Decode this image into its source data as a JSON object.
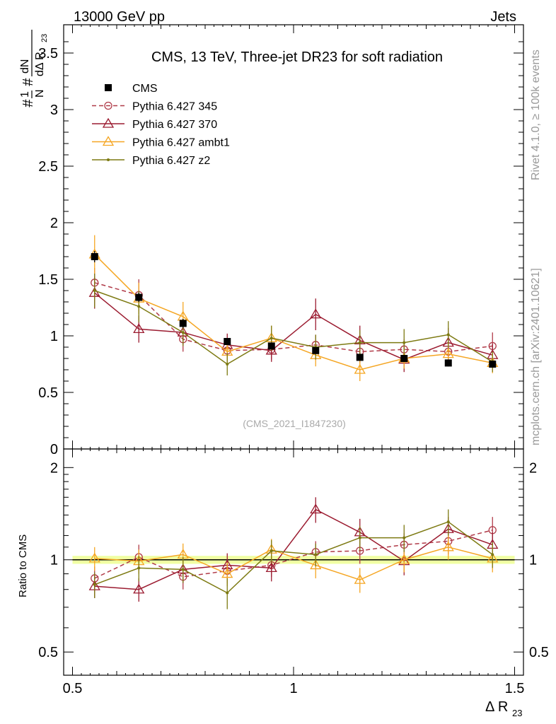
{
  "header": {
    "left": "13000 GeV pp",
    "right": "Jets"
  },
  "side": {
    "rivet": "Rivet 4.1.0, ≥ 100k events",
    "mcplots": "mcplots.cern.ch [arXiv:2401.10621]"
  },
  "chart_data": [
    {
      "type": "line",
      "panel": "main",
      "title": "CMS, 13 TeV, Three-jet DR23 for soft radiation",
      "watermark": "(CMS_2021_I1847230)",
      "ylabel": "#1/N #dN/dΔ R23",
      "ylim": [
        0,
        3.75
      ],
      "yticks": [
        "0",
        "0.5",
        "1",
        "1.5",
        "2",
        "2.5",
        "3",
        "3.5"
      ],
      "x": [
        0.55,
        0.65,
        0.75,
        0.85,
        0.95,
        1.05,
        1.15,
        1.25,
        1.35,
        1.45
      ],
      "series": [
        {
          "name": "CMS",
          "color": "#000000",
          "marker": "square",
          "values": [
            1.7,
            1.34,
            1.11,
            0.95,
            0.91,
            0.87,
            0.81,
            0.8,
            0.76,
            0.75
          ],
          "errors": [
            0.05,
            0.04,
            0.04,
            0.03,
            0.03,
            0.03,
            0.03,
            0.03,
            0.03,
            0.03
          ]
        },
        {
          "name": "Pythia 6.427 345",
          "color": "#b03a48",
          "marker": "circle",
          "dashed": true,
          "values": [
            1.47,
            1.36,
            0.97,
            0.87,
            0.88,
            0.92,
            0.86,
            0.88,
            0.86,
            0.91
          ],
          "errors": [
            0.13,
            0.14,
            0.11,
            0.09,
            0.09,
            0.09,
            0.1,
            0.09,
            0.1,
            0.12
          ]
        },
        {
          "name": "Pythia 6.427 370",
          "color": "#9b1b30",
          "marker": "triangle",
          "values": [
            1.38,
            1.06,
            1.03,
            0.92,
            0.87,
            1.19,
            0.96,
            0.79,
            0.94,
            0.83
          ],
          "errors": [
            0.14,
            0.12,
            0.11,
            0.1,
            0.1,
            0.14,
            0.13,
            0.11,
            0.13,
            0.1
          ]
        },
        {
          "name": "Pythia 6.427 ambt1",
          "color": "#f5a623",
          "marker": "triangle",
          "values": [
            1.72,
            1.33,
            1.17,
            0.86,
            0.98,
            0.83,
            0.7,
            0.8,
            0.84,
            0.76
          ],
          "errors": [
            0.17,
            0.14,
            0.13,
            0.09,
            0.11,
            0.1,
            0.1,
            0.09,
            0.11,
            0.09
          ]
        },
        {
          "name": "Pythia 6.427 z2",
          "color": "#7d7a12",
          "marker": "dot",
          "values": [
            1.4,
            1.26,
            1.03,
            0.75,
            0.98,
            0.9,
            0.94,
            0.94,
            1.01,
            0.77
          ],
          "errors": [
            0.15,
            0.14,
            0.12,
            0.1,
            0.11,
            0.11,
            0.11,
            0.12,
            0.12,
            0.09
          ]
        }
      ]
    },
    {
      "type": "line",
      "panel": "ratio",
      "ylabel": "Ratio to CMS",
      "xlabel": "Δ R23",
      "ylim": [
        0.42,
        2.3
      ],
      "yscale": "log",
      "xlim": [
        0.48,
        1.52
      ],
      "xticks": [
        "0.5",
        "1",
        "1.5"
      ],
      "yticks": [
        "0.5",
        "1",
        "2"
      ],
      "reference": 1.0,
      "band": [
        0.97,
        1.03
      ],
      "series": [
        {
          "name": "Pythia 6.427 345",
          "values": [
            0.87,
            1.02,
            0.88,
            0.92,
            0.96,
            1.06,
            1.07,
            1.12,
            1.15,
            1.25
          ],
          "errors": [
            0.08,
            0.1,
            0.08,
            0.08,
            0.08,
            0.09,
            0.1,
            0.1,
            0.11,
            0.13
          ]
        },
        {
          "name": "Pythia 6.427 370",
          "values": [
            0.82,
            0.8,
            0.93,
            0.96,
            0.94,
            1.46,
            1.23,
            0.99,
            1.26,
            1.12
          ],
          "errors": [
            0.07,
            0.07,
            0.09,
            0.09,
            0.09,
            0.14,
            0.13,
            0.1,
            0.12,
            0.11
          ]
        },
        {
          "name": "Pythia 6.427 ambt1",
          "values": [
            1.01,
            0.99,
            1.04,
            0.9,
            1.08,
            0.96,
            0.86,
            1.0,
            1.1,
            1.01
          ],
          "errors": [
            0.09,
            0.09,
            0.09,
            0.08,
            0.09,
            0.09,
            0.08,
            0.09,
            0.1,
            0.1
          ]
        },
        {
          "name": "Pythia 6.427 z2",
          "values": [
            0.83,
            0.94,
            0.93,
            0.78,
            1.07,
            1.04,
            1.18,
            1.18,
            1.33,
            1.04
          ],
          "errors": [
            0.08,
            0.09,
            0.09,
            0.09,
            0.09,
            0.09,
            0.11,
            0.12,
            0.13,
            0.1
          ]
        }
      ]
    }
  ]
}
